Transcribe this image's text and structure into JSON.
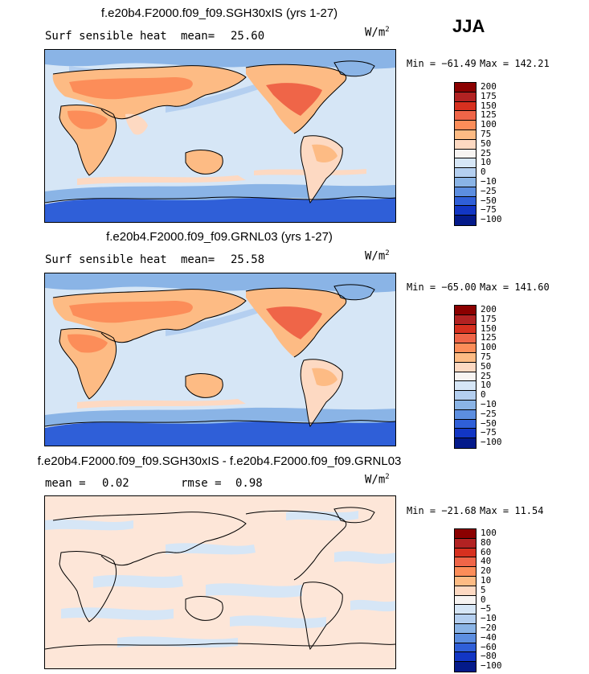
{
  "season": "JJA",
  "colors": {
    "heat": [
      "#8b0000",
      "#b22222",
      "#d7301f",
      "#ef6548",
      "#fc8d59",
      "#fdbb84",
      "#fdd9c2",
      "#f7f4f2",
      "#d6e6f6",
      "#b4cff0",
      "#8ab4e6",
      "#5c8ee0",
      "#2f5fd8",
      "#1236c4",
      "#041a8a"
    ]
  },
  "panels": [
    {
      "title": "f.e20b4.F2000.f09_f09.SGH30xIS (yrs 1-27)",
      "variable": "Surf sensible heat",
      "stat_label": "mean=",
      "stat_value": "25.60",
      "unit": "W/m",
      "unit_sup": "2",
      "min_label": "Min = −61.49",
      "max_label": "Max = 142.21",
      "legend_labels": [
        "200",
        "175",
        "150",
        "125",
        "100",
        "75",
        "50",
        "25",
        "10",
        "0",
        "−10",
        "−25",
        "−50",
        "−75",
        "−100"
      ]
    },
    {
      "title": "f.e20b4.F2000.f09_f09.GRNL03 (yrs 1-27)",
      "variable": "Surf sensible heat",
      "stat_label": "mean=",
      "stat_value": "25.58",
      "unit": "W/m",
      "unit_sup": "2",
      "min_label": "Min = −65.00",
      "max_label": "Max = 141.60",
      "legend_labels": [
        "200",
        "175",
        "150",
        "125",
        "100",
        "75",
        "50",
        "25",
        "10",
        "0",
        "−10",
        "−25",
        "−50",
        "−75",
        "−100"
      ]
    },
    {
      "title": "f.e20b4.F2000.f09_f09.SGH30xIS - f.e20b4.F2000.f09_f09.GRNL03",
      "stat_label": "mean =",
      "stat_value": "0.02",
      "rmse_label": "rmse =",
      "rmse_value": "0.98",
      "unit": "W/m",
      "unit_sup": "2",
      "min_label": "Min = −21.68",
      "max_label": "Max = 11.54",
      "legend_labels": [
        "100",
        "80",
        "60",
        "40",
        "20",
        "10",
        "5",
        "0",
        "−5",
        "−10",
        "−20",
        "−40",
        "−60",
        "−80",
        "−100"
      ]
    }
  ]
}
